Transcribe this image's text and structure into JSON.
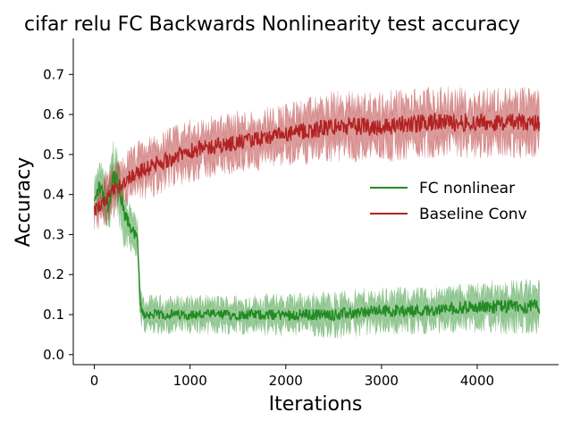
{
  "chart_data": {
    "type": "line",
    "title": "cifar relu FC Backwards Nonlinearity test accuracy",
    "xlabel": "Iterations",
    "ylabel": "Accuracy",
    "xlim": [
      -220,
      4850
    ],
    "ylim": [
      -0.025,
      0.79
    ],
    "xticks": [
      0,
      1000,
      2000,
      3000,
      4000
    ],
    "yticks": [
      0.0,
      0.1,
      0.2,
      0.3,
      0.4,
      0.5,
      0.6,
      0.7
    ],
    "grid": false,
    "legend_position": "center-right",
    "series": [
      {
        "name": "FC nonlinear",
        "color": "#228B22",
        "band_color": "#228B22",
        "x": [
          0,
          50,
          100,
          150,
          200,
          250,
          300,
          350,
          400,
          450,
          480,
          520,
          600,
          800,
          1000,
          1500,
          2000,
          2500,
          3000,
          3500,
          4000,
          4300,
          4650
        ],
        "mean": [
          0.38,
          0.42,
          0.4,
          0.37,
          0.45,
          0.42,
          0.36,
          0.33,
          0.31,
          0.29,
          0.12,
          0.1,
          0.1,
          0.1,
          0.1,
          0.1,
          0.1,
          0.1,
          0.11,
          0.11,
          0.12,
          0.12,
          0.12
        ],
        "spread": [
          0.06,
          0.07,
          0.07,
          0.08,
          0.1,
          0.1,
          0.09,
          0.07,
          0.06,
          0.05,
          0.05,
          0.05,
          0.05,
          0.05,
          0.05,
          0.05,
          0.055,
          0.06,
          0.06,
          0.06,
          0.065,
          0.07,
          0.07
        ]
      },
      {
        "name": "Baseline Conv",
        "color": "#B22222",
        "band_color": "#B22222",
        "x": [
          0,
          100,
          200,
          300,
          400,
          500,
          700,
          1000,
          1500,
          2000,
          2500,
          3000,
          3500,
          4000,
          4300,
          4650
        ],
        "mean": [
          0.36,
          0.38,
          0.41,
          0.43,
          0.45,
          0.46,
          0.48,
          0.51,
          0.53,
          0.55,
          0.57,
          0.57,
          0.58,
          0.58,
          0.58,
          0.58
        ],
        "spread": [
          0.06,
          0.07,
          0.07,
          0.07,
          0.08,
          0.08,
          0.08,
          0.08,
          0.08,
          0.08,
          0.09,
          0.09,
          0.09,
          0.09,
          0.09,
          0.09
        ]
      }
    ]
  }
}
